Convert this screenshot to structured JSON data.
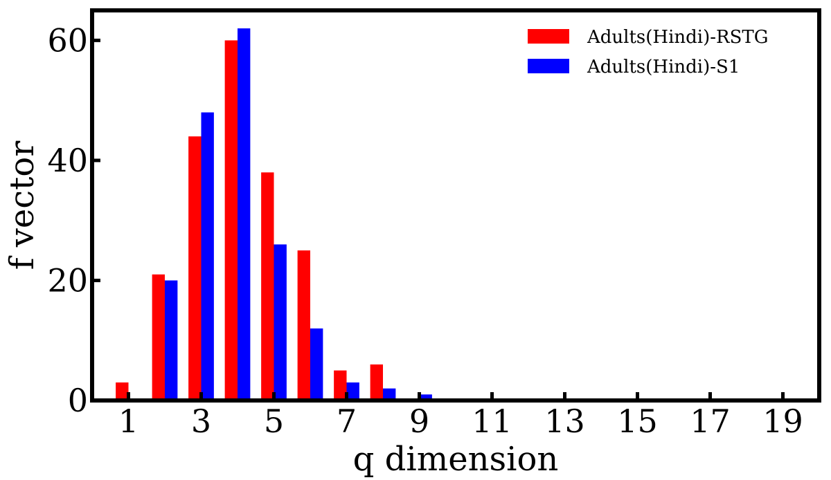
{
  "chart_data": {
    "type": "bar",
    "xlabel": "q dimension",
    "ylabel": "f vector",
    "x": [
      1,
      2,
      3,
      4,
      5,
      6,
      7,
      8,
      9,
      10,
      11,
      12,
      13,
      14,
      15,
      16,
      17,
      18,
      19
    ],
    "xticks": [
      "1",
      "3",
      "5",
      "7",
      "9",
      "11",
      "13",
      "15",
      "17",
      "19"
    ],
    "yticks": [
      "0",
      "20",
      "40",
      "60"
    ],
    "xlim": [
      0,
      20
    ],
    "ylim": [
      0,
      65
    ],
    "series": [
      {
        "name": "Adults(Hindi)-RSTG",
        "color": "#ff0000",
        "values": [
          3,
          21,
          44,
          60,
          38,
          25,
          5,
          6,
          0,
          0,
          0,
          0,
          0,
          0,
          0,
          0,
          0,
          0,
          0
        ]
      },
      {
        "name": "Adults(Hindi)-S1",
        "color": "#0000ff",
        "values": [
          0,
          20,
          48,
          62,
          26,
          12,
          3,
          2,
          1,
          0,
          0,
          0,
          0,
          0,
          0,
          0,
          0,
          0,
          0
        ]
      }
    ],
    "legend_position": "top-right",
    "grid": false
  }
}
